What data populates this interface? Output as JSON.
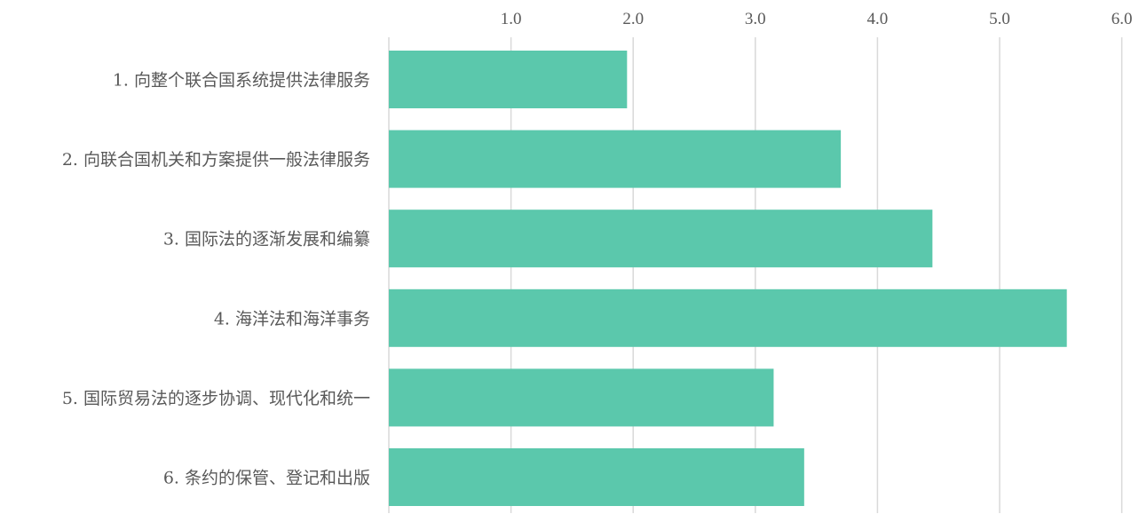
{
  "chart_data": {
    "type": "bar",
    "orientation": "horizontal",
    "categories": [
      "1. 向整个联合国系统提供法律服务",
      "2. 向联合国机关和方案提供一般法律服务",
      "3. 国际法的逐渐发展和编纂",
      "4. 海洋法和海洋事务",
      "5. 国际贸易法的逐步协调、现代化和统一",
      "6. 条约的保管、登记和出版"
    ],
    "values": [
      1.95,
      3.7,
      4.45,
      5.55,
      3.15,
      3.4
    ],
    "xlim": [
      0,
      6
    ],
    "ticks": [
      1,
      2,
      3,
      4,
      5,
      6
    ],
    "tick_labels": [
      "1.0",
      "2.0",
      "3.0",
      "4.0",
      "5.0",
      "6.0"
    ],
    "axis_position": "top",
    "grid": true,
    "bar_color": "#5bc8ac",
    "grid_color": "#d9d9d9",
    "title": "",
    "xlabel": "",
    "ylabel": ""
  }
}
